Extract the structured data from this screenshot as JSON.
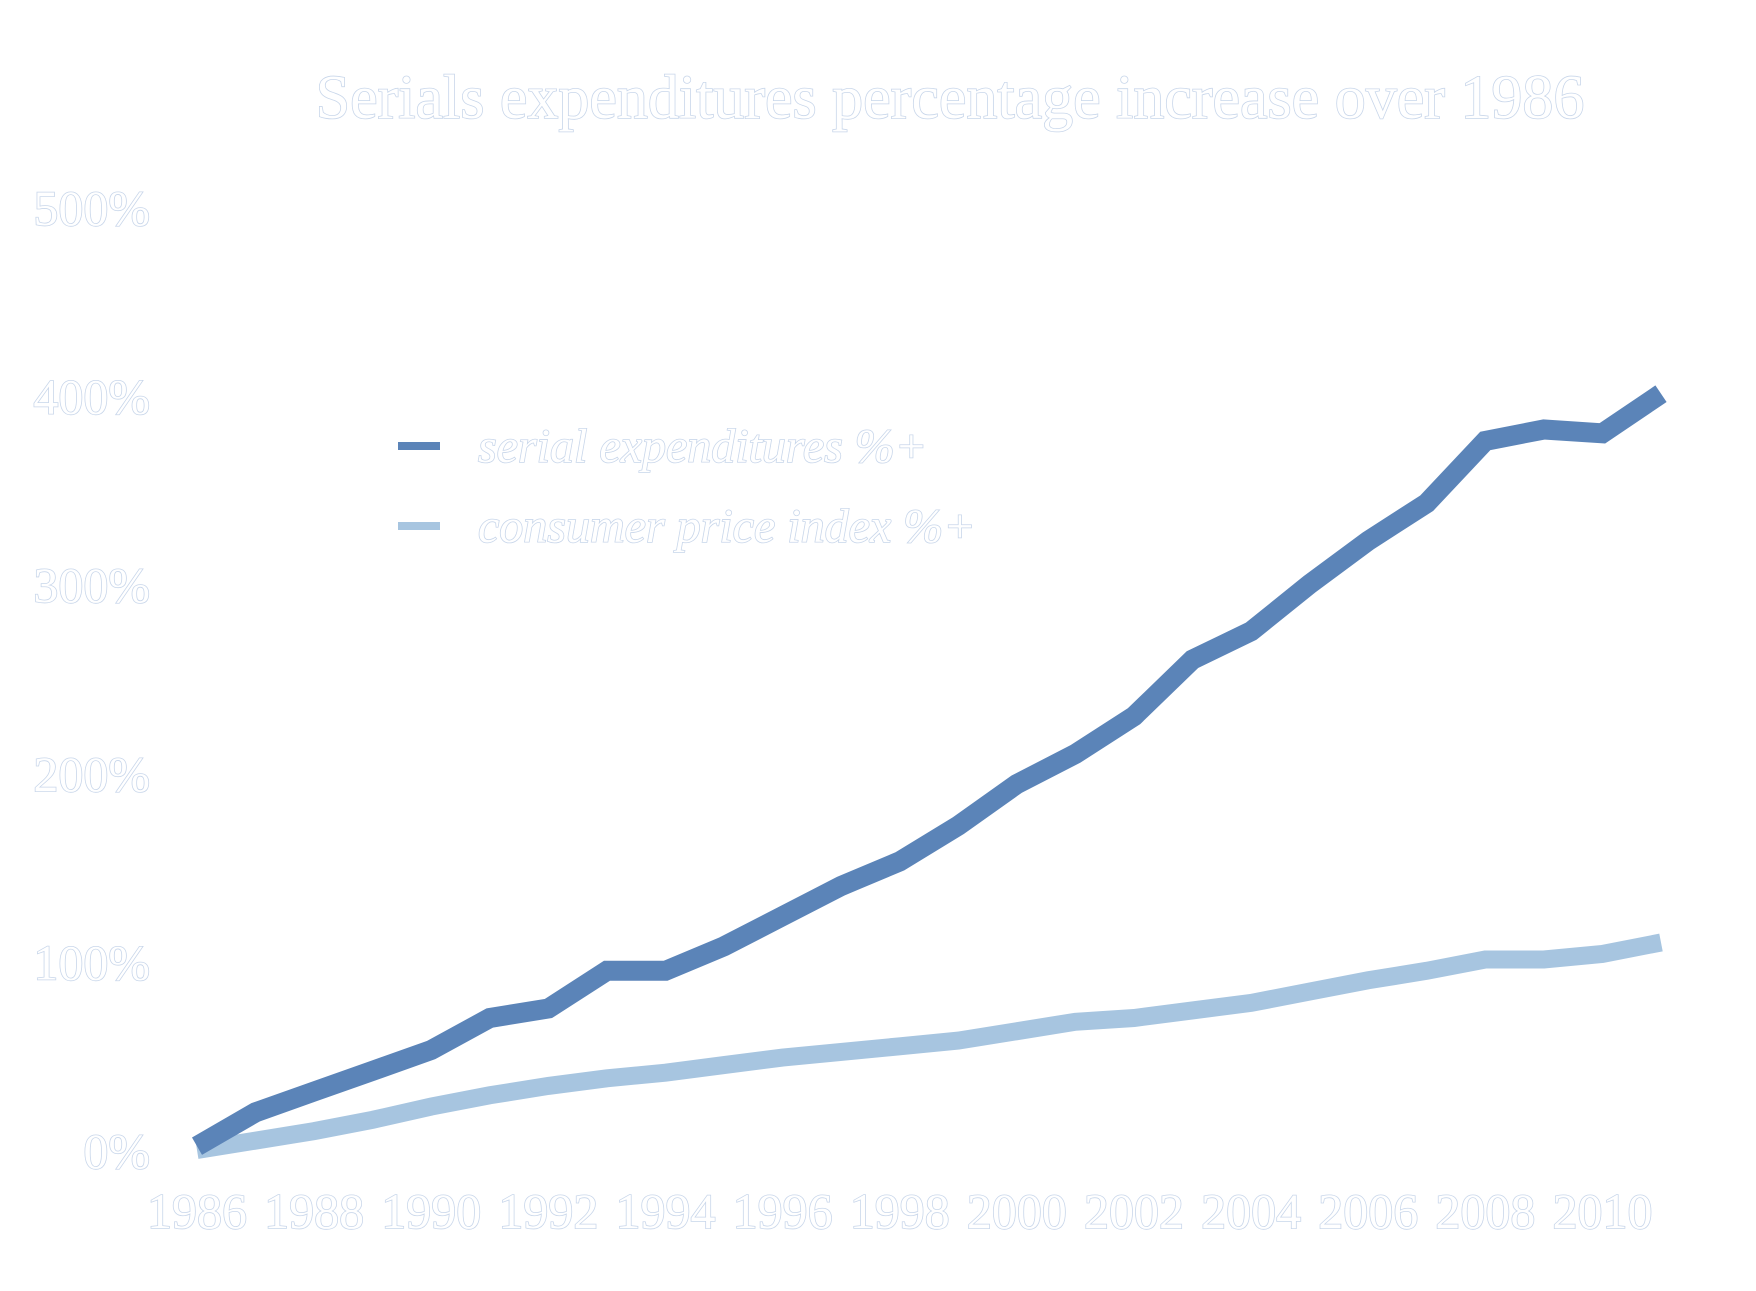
{
  "chart_data": {
    "type": "line",
    "title": "Serials expenditures percentage increase over 1986",
    "xlabel": "",
    "ylabel": "",
    "x": [
      1986,
      1987,
      1988,
      1989,
      1990,
      1991,
      1992,
      1993,
      1994,
      1995,
      1996,
      1997,
      1998,
      1999,
      2000,
      2001,
      2002,
      2003,
      2004,
      2005,
      2006,
      2007,
      2008,
      2009,
      2010,
      2011
    ],
    "x_tick_labels": [
      "1986",
      "1988",
      "1990",
      "1992",
      "1994",
      "1996",
      "1998",
      "2000",
      "2002",
      "2004",
      "2006",
      "2008",
      "2010"
    ],
    "y_tick_labels": [
      "0%",
      "100%",
      "200%",
      "300%",
      "400%",
      "500%"
    ],
    "ylim": [
      0,
      500
    ],
    "grid": false,
    "legend_position": "upper-left",
    "series": [
      {
        "name": "serial expenditures %+",
        "color": "#5b84b8",
        "values": [
          2,
          20,
          31,
          42,
          53,
          70,
          75,
          95,
          95,
          108,
          124,
          140,
          153,
          172,
          194,
          210,
          230,
          260,
          275,
          300,
          323,
          343,
          376,
          382,
          380,
          401
        ]
      },
      {
        "name": "consumer price index %+",
        "color": "#a7c5e0",
        "values": [
          0,
          5,
          10,
          16,
          23,
          29,
          34,
          38,
          41,
          45,
          49,
          52,
          55,
          58,
          63,
          68,
          70,
          74,
          78,
          84,
          90,
          95,
          101,
          101,
          104,
          110
        ]
      }
    ]
  }
}
